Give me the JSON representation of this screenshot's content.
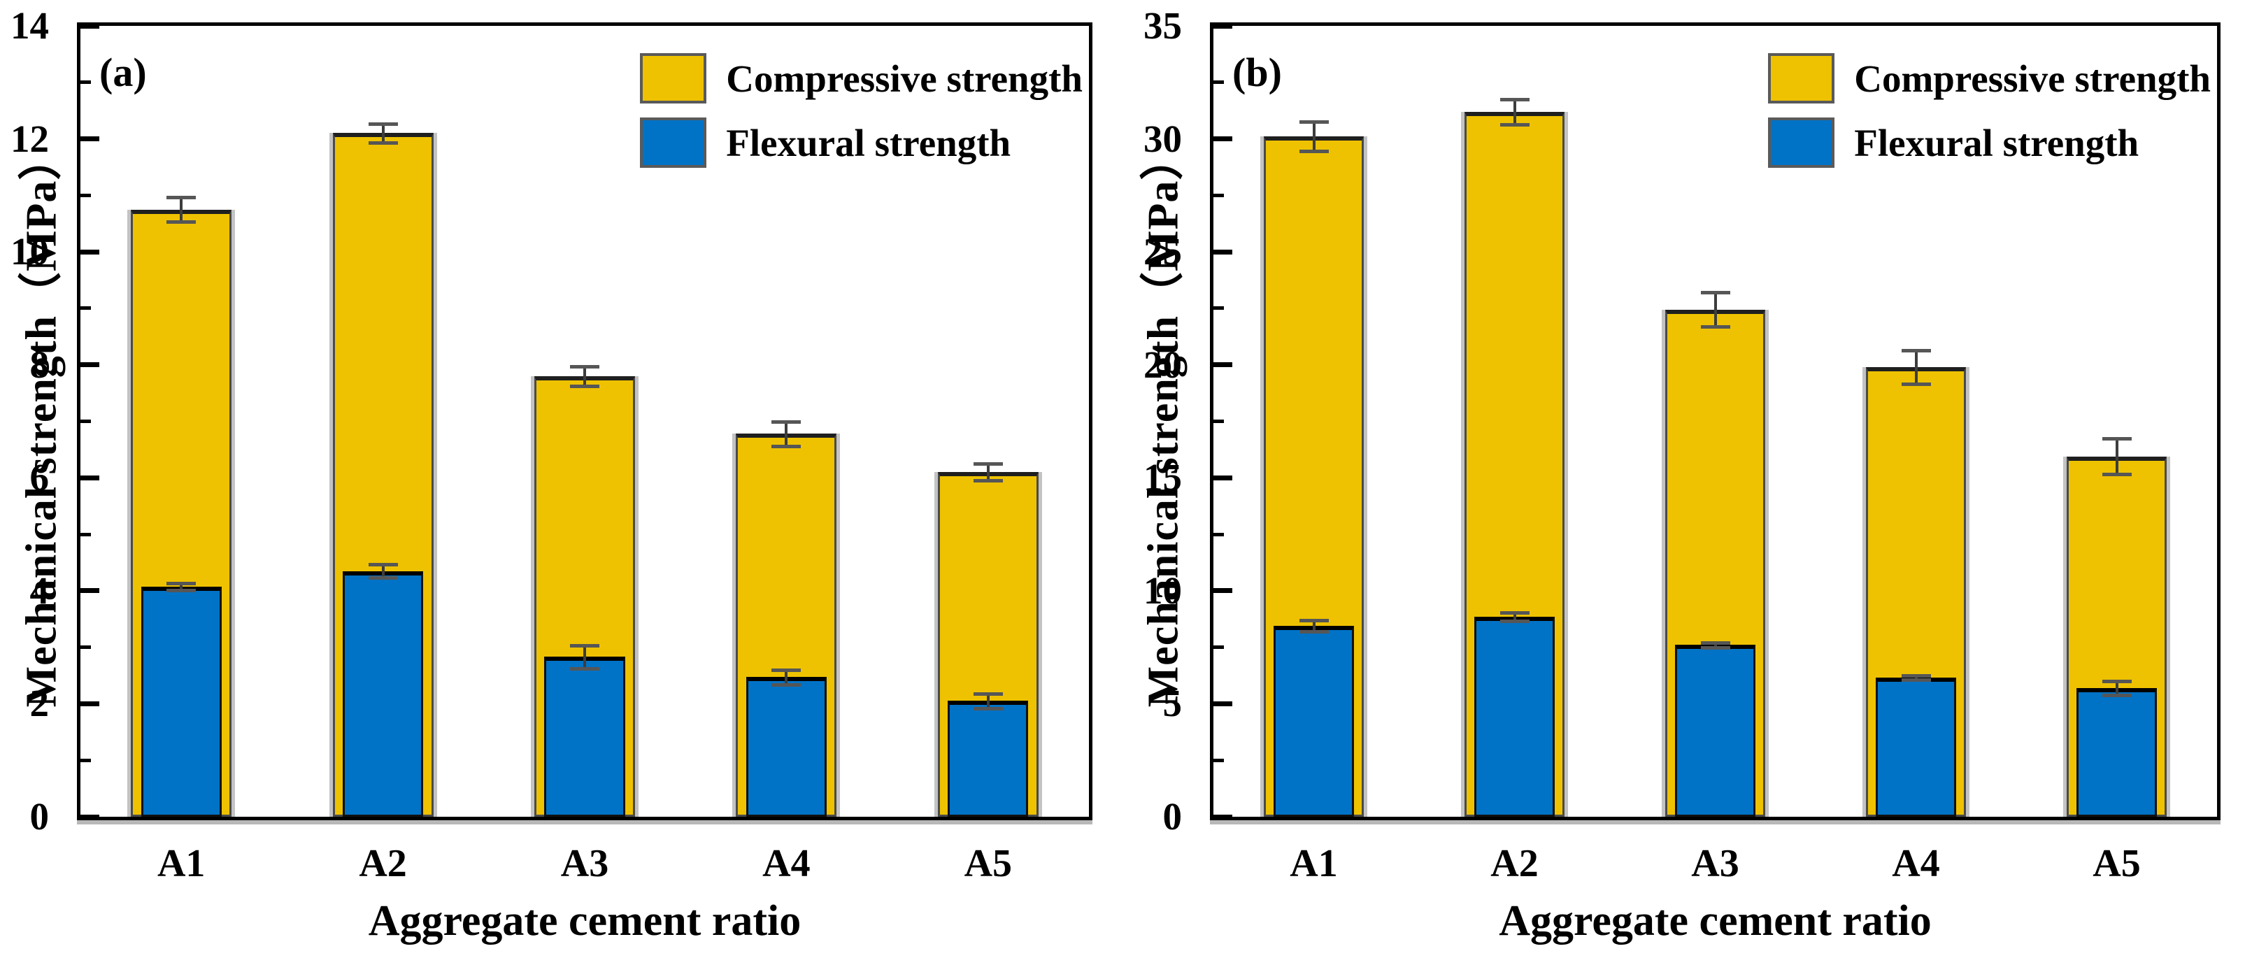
{
  "figure": {
    "background": "#ffffff",
    "x_axis_title": "Aggregate cement ratio",
    "y_axis_title": "Mechanical strength（MPa）",
    "legend": {
      "items": [
        "Compressive strength",
        "Flexural strength"
      ],
      "position": "upper-right-inside",
      "frame": false
    },
    "colors": {
      "compressive": "#EEC200",
      "flexural": "#0073C6",
      "bar_edge": "#3a3a3a",
      "error_bar": "#3d3d3d",
      "axis": "#000000",
      "swatch_edge": "#5a5a5a"
    }
  },
  "chart_data": [
    {
      "type": "bar",
      "panel_label": "(a)",
      "xlabel": "Aggregate cement ratio",
      "ylabel": "Mechanical strength（MPa）",
      "categories": [
        "A1",
        "A2",
        "A3",
        "A4",
        "A5"
      ],
      "series": [
        {
          "name": "Compressive strength",
          "color": "#EEC200",
          "values": [
            10.75,
            12.1,
            7.8,
            6.78,
            6.1
          ],
          "errors": [
            0.22,
            0.17,
            0.17,
            0.22,
            0.15
          ]
        },
        {
          "name": "Flexural strength",
          "color": "#0073C6",
          "values": [
            4.07,
            4.35,
            2.83,
            2.47,
            2.05
          ],
          "errors": [
            0.06,
            0.12,
            0.2,
            0.13,
            0.13
          ]
        }
      ],
      "ylim": [
        0,
        14
      ],
      "yticks": [
        0,
        2,
        4,
        6,
        8,
        10,
        12,
        14
      ],
      "minor_tick_step": 1,
      "bar_layout": "overlaid-centered",
      "grid": false,
      "legend_position": "upper right"
    },
    {
      "type": "bar",
      "panel_label": "(b)",
      "xlabel": "Aggregate cement ratio",
      "ylabel": "Mechanical strength（MPa）",
      "categories": [
        "A1",
        "A2",
        "A3",
        "A4",
        "A5"
      ],
      "series": [
        {
          "name": "Compressive strength",
          "color": "#EEC200",
          "values": [
            30.1,
            31.2,
            22.45,
            19.9,
            15.95
          ],
          "errors": [
            0.65,
            0.55,
            0.75,
            0.75,
            0.8
          ]
        },
        {
          "name": "Flexural strength",
          "color": "#0073C6",
          "values": [
            8.45,
            8.85,
            7.6,
            6.15,
            5.7
          ],
          "errors": [
            0.25,
            0.2,
            0.12,
            0.1,
            0.3
          ]
        }
      ],
      "ylim": [
        0,
        35
      ],
      "yticks": [
        0,
        5,
        10,
        15,
        20,
        25,
        30,
        35
      ],
      "minor_tick_step": 2.5,
      "bar_layout": "overlaid-centered",
      "grid": false,
      "legend_position": "upper right"
    }
  ]
}
